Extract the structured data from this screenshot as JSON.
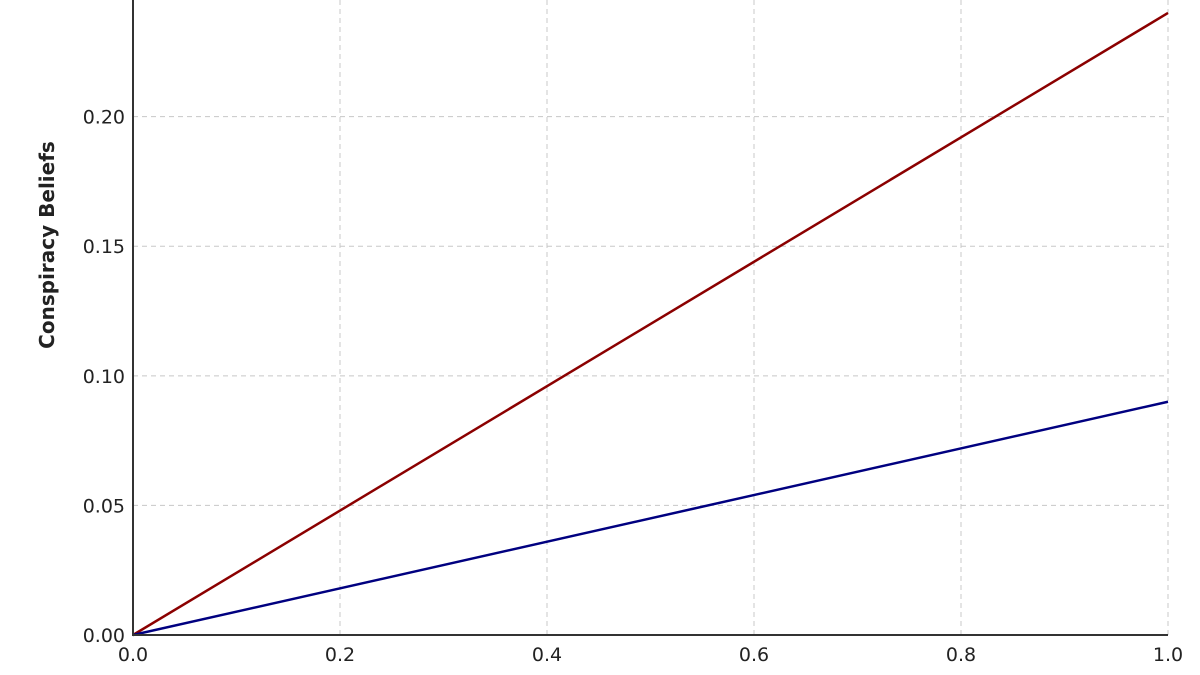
{
  "chart_data": {
    "type": "line",
    "title": "",
    "xlabel": "",
    "ylabel": "Conspiracy Beliefs",
    "xlim": [
      0,
      1.0
    ],
    "ylim": [
      0,
      0.245
    ],
    "grid": true,
    "x_ticks": [
      "0.0",
      "0.2",
      "0.4",
      "0.6",
      "0.8",
      "1.0"
    ],
    "x_tick_values": [
      0,
      0.2,
      0.4,
      0.6,
      0.8,
      1.0
    ],
    "y_ticks": [
      "0.00",
      "0.05",
      "0.10",
      "0.15",
      "0.20"
    ],
    "y_tick_values": [
      0,
      0.05,
      0.1,
      0.15,
      0.2
    ],
    "series": [
      {
        "x": [
          0,
          1.0
        ],
        "y": [
          0,
          0.24
        ],
        "color": "#8b0000"
      },
      {
        "x": [
          0,
          1.0
        ],
        "y": [
          0,
          0.09
        ],
        "color": "#000080"
      }
    ]
  }
}
